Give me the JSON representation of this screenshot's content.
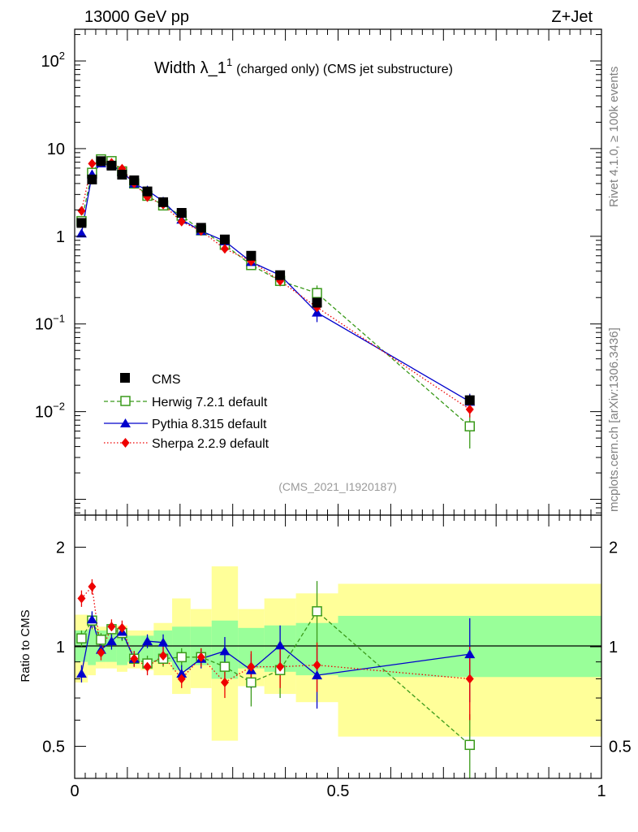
{
  "header": {
    "left": "13000 GeV pp",
    "right": "Z+Jet"
  },
  "side_labels": {
    "rivet": "Rivet 4.1.0, ≥ 100k events",
    "mcplots": "mcplots.cern.ch [arXiv:1306.3436]"
  },
  "colors": {
    "data": "#000000",
    "herwig": "#3a9a1a",
    "pythia": "#0000cc",
    "sherpa": "#ee0000",
    "band_inner": "#99ff99",
    "band_outer": "#ffff99"
  },
  "chart_data": [
    {
      "type": "scatter",
      "title": "Width λ_1^1 (charged only) (CMS jet substructure)",
      "title_main": "Width λ_1",
      "title_sup": "1",
      "title_rest": "(charged only) (CMS jet substructure)",
      "analysis_tag": "(CMS_2021_I1920187)",
      "yscale": "log",
      "xlim": [
        0,
        1
      ],
      "ylim": [
        0.00066,
        230
      ],
      "ytick_labels": [
        {
          "value": 100,
          "base": "10",
          "exp": "2"
        },
        {
          "value": 10,
          "text": "10"
        },
        {
          "value": 1,
          "text": "1"
        },
        {
          "value": 0.1,
          "base": "10",
          "exp": "−1"
        },
        {
          "value": 0.01,
          "base": "10",
          "exp": "−2"
        }
      ],
      "legend": [
        "CMS",
        "Herwig 7.2.1 default",
        "Pythia 8.315 default",
        "Sherpa 2.2.9 default"
      ],
      "bins": [
        [
          0.0,
          0.025
        ],
        [
          0.025,
          0.04
        ],
        [
          0.04,
          0.06
        ],
        [
          0.06,
          0.08
        ],
        [
          0.08,
          0.1
        ],
        [
          0.1,
          0.125
        ],
        [
          0.125,
          0.15
        ],
        [
          0.15,
          0.185
        ],
        [
          0.185,
          0.22
        ],
        [
          0.22,
          0.26
        ],
        [
          0.26,
          0.31
        ],
        [
          0.31,
          0.36
        ],
        [
          0.36,
          0.42
        ],
        [
          0.42,
          0.5
        ],
        [
          0.5,
          1.0
        ]
      ],
      "series": [
        {
          "name": "CMS",
          "marker": "filled-square",
          "x": [
            0.013,
            0.033,
            0.05,
            0.07,
            0.09,
            0.113,
            0.138,
            0.168,
            0.203,
            0.24,
            0.285,
            0.335,
            0.39,
            0.46,
            0.75
          ],
          "y": [
            1.42,
            4.45,
            7.2,
            6.4,
            5.05,
            4.35,
            3.25,
            2.45,
            1.85,
            1.25,
            0.92,
            0.6,
            0.36,
            0.175,
            0.0135
          ],
          "err": [
            0.08,
            0.2,
            0.25,
            0.2,
            0.15,
            0.15,
            0.12,
            0.1,
            0.08,
            0.06,
            0.05,
            0.04,
            0.03,
            0.02,
            0.002
          ]
        },
        {
          "name": "Herwig 7.2.1 default",
          "marker": "open-square",
          "line": "dashed",
          "x": [
            0.013,
            0.033,
            0.05,
            0.07,
            0.09,
            0.113,
            0.138,
            0.168,
            0.203,
            0.24,
            0.285,
            0.335,
            0.39,
            0.46,
            0.75
          ],
          "y": [
            1.49,
            5.3,
            7.55,
            7.2,
            5.5,
            4.0,
            2.9,
            2.25,
            1.72,
            1.17,
            0.8,
            0.47,
            0.31,
            0.225,
            0.0068
          ],
          "err": [
            0.1,
            0.3,
            0.3,
            0.3,
            0.25,
            0.2,
            0.15,
            0.12,
            0.1,
            0.08,
            0.06,
            0.05,
            0.04,
            0.05,
            0.003
          ]
        },
        {
          "name": "Pythia 8.315 default",
          "marker": "filled-triangle",
          "line": "solid",
          "x": [
            0.013,
            0.033,
            0.05,
            0.07,
            0.09,
            0.113,
            0.138,
            0.168,
            0.203,
            0.24,
            0.285,
            0.335,
            0.39,
            0.46,
            0.75
          ],
          "y": [
            1.08,
            5.1,
            6.8,
            6.5,
            5.5,
            4.0,
            3.35,
            2.5,
            1.55,
            1.15,
            0.88,
            0.51,
            0.36,
            0.135,
            0.013
          ],
          "err": [
            0.08,
            0.3,
            0.3,
            0.3,
            0.25,
            0.2,
            0.15,
            0.12,
            0.1,
            0.08,
            0.07,
            0.05,
            0.04,
            0.03,
            0.003
          ]
        },
        {
          "name": "Sherpa 2.2.9 default",
          "marker": "filled-diamond",
          "line": "dotted",
          "x": [
            0.013,
            0.033,
            0.05,
            0.07,
            0.09,
            0.113,
            0.138,
            0.168,
            0.203,
            0.24,
            0.285,
            0.335,
            0.39,
            0.46,
            0.75
          ],
          "y": [
            1.95,
            6.75,
            7.1,
            6.9,
            5.9,
            4.0,
            2.8,
            2.3,
            1.47,
            1.15,
            0.72,
            0.52,
            0.31,
            0.155,
            0.0106
          ],
          "err": [
            0.1,
            0.3,
            0.3,
            0.3,
            0.25,
            0.2,
            0.15,
            0.12,
            0.1,
            0.08,
            0.07,
            0.05,
            0.04,
            0.03,
            0.002
          ]
        }
      ]
    },
    {
      "type": "scatter",
      "ylabel": "Ratio to CMS",
      "yscale": "log",
      "xlim": [
        0,
        1
      ],
      "ylim": [
        0.4,
        2.5
      ],
      "ytick_labels": [
        {
          "value": 2,
          "text": "2"
        },
        {
          "value": 1,
          "text": "1"
        },
        {
          "value": 0.5,
          "text": "0.5"
        }
      ],
      "xtick_labels": [
        {
          "value": 0,
          "text": "0"
        },
        {
          "value": 0.5,
          "text": "0.5"
        },
        {
          "value": 1,
          "text": "1"
        }
      ],
      "bands": {
        "inner": [
          [
            0.9,
            1.12
          ],
          [
            0.88,
            1.13
          ],
          [
            0.9,
            1.12
          ],
          [
            0.9,
            1.1
          ],
          [
            0.88,
            1.1
          ],
          [
            0.9,
            1.08
          ],
          [
            0.9,
            1.08
          ],
          [
            0.9,
            1.12
          ],
          [
            0.85,
            1.15
          ],
          [
            0.88,
            1.15
          ],
          [
            0.8,
            1.2
          ],
          [
            0.86,
            1.14
          ],
          [
            0.84,
            1.16
          ],
          [
            0.82,
            1.18
          ],
          [
            0.81,
            1.24
          ]
        ],
        "outer": [
          [
            0.78,
            1.25
          ],
          [
            0.82,
            1.2
          ],
          [
            0.86,
            1.15
          ],
          [
            0.86,
            1.14
          ],
          [
            0.84,
            1.16
          ],
          [
            0.86,
            1.12
          ],
          [
            0.85,
            1.12
          ],
          [
            0.82,
            1.18
          ],
          [
            0.72,
            1.4
          ],
          [
            0.75,
            1.3
          ],
          [
            0.52,
            1.75
          ],
          [
            0.76,
            1.3
          ],
          [
            0.72,
            1.4
          ],
          [
            0.68,
            1.45
          ],
          [
            0.535,
            1.55
          ]
        ]
      },
      "series": [
        {
          "name": "Herwig 7.2.1 default",
          "x": [
            0.013,
            0.033,
            0.05,
            0.07,
            0.09,
            0.113,
            0.138,
            0.168,
            0.203,
            0.24,
            0.285,
            0.335,
            0.39,
            0.46,
            0.75
          ],
          "y": [
            1.06,
            1.2,
            1.05,
            1.13,
            1.1,
            0.92,
            0.89,
            0.92,
            0.93,
            0.93,
            0.87,
            0.78,
            0.85,
            1.28,
            0.505
          ],
          "err": [
            0.06,
            0.07,
            0.05,
            0.06,
            0.06,
            0.05,
            0.05,
            0.05,
            0.06,
            0.06,
            0.08,
            0.12,
            0.15,
            0.3,
            0.12
          ]
        },
        {
          "name": "Pythia 8.315 default",
          "x": [
            0.013,
            0.033,
            0.05,
            0.07,
            0.09,
            0.113,
            0.138,
            0.168,
            0.203,
            0.24,
            0.285,
            0.335,
            0.39,
            0.46,
            0.75
          ],
          "y": [
            0.83,
            1.21,
            0.98,
            1.04,
            1.11,
            0.92,
            1.04,
            1.03,
            0.83,
            0.92,
            0.97,
            0.85,
            1.01,
            0.82,
            0.95
          ],
          "err": [
            0.05,
            0.07,
            0.05,
            0.06,
            0.06,
            0.05,
            0.05,
            0.06,
            0.05,
            0.06,
            0.1,
            0.1,
            0.15,
            0.17,
            0.27
          ]
        },
        {
          "name": "Sherpa 2.2.9 default",
          "x": [
            0.013,
            0.033,
            0.05,
            0.07,
            0.09,
            0.113,
            0.138,
            0.168,
            0.203,
            0.24,
            0.285,
            0.335,
            0.39,
            0.46,
            0.75
          ],
          "y": [
            1.4,
            1.52,
            0.96,
            1.15,
            1.14,
            0.92,
            0.87,
            0.94,
            0.8,
            0.93,
            0.78,
            0.87,
            0.87,
            0.88,
            0.8
          ],
          "err": [
            0.08,
            0.08,
            0.05,
            0.06,
            0.06,
            0.05,
            0.05,
            0.06,
            0.05,
            0.06,
            0.08,
            0.1,
            0.12,
            0.15,
            0.2
          ]
        }
      ]
    }
  ]
}
